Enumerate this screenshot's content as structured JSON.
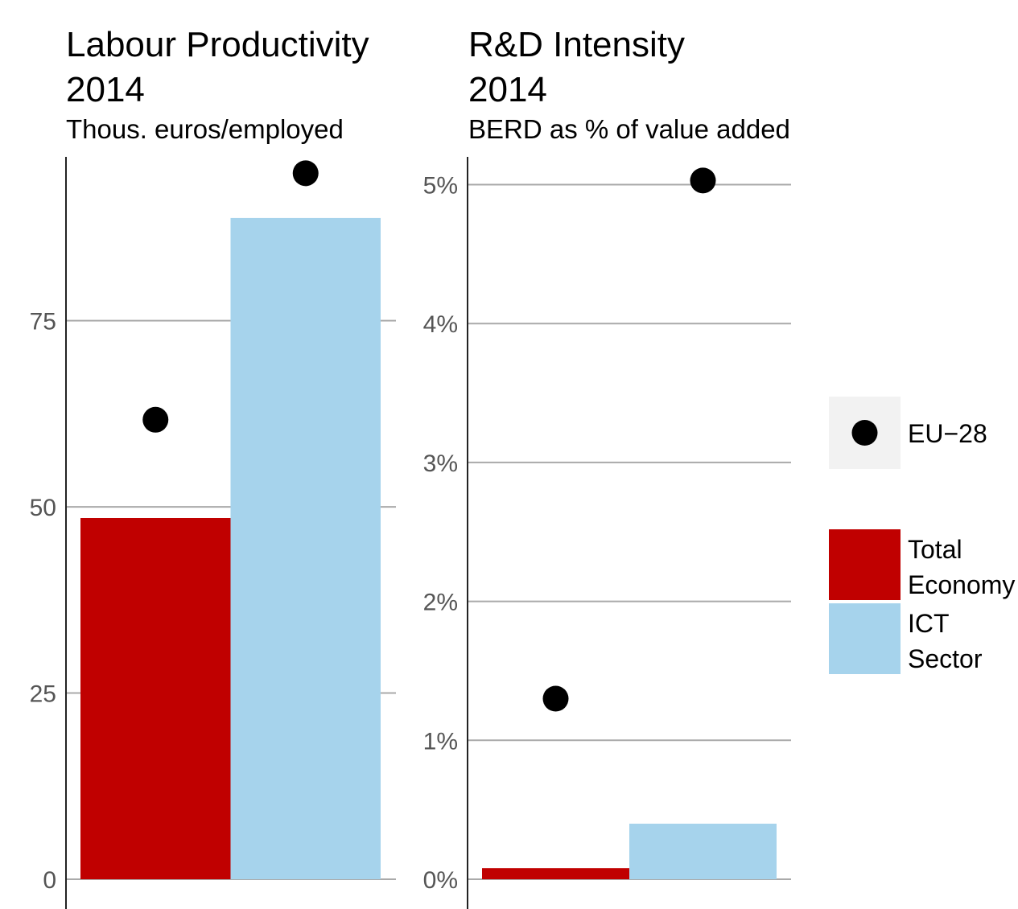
{
  "chart_data": [
    {
      "type": "bar",
      "title": "Labour Productivity 2014",
      "title_lines": [
        "Labour Productivity",
        "2014"
      ],
      "subtitle": "Thous. euros/employed",
      "categories": [
        "Total Economy",
        "ICT Sector"
      ],
      "series": [
        {
          "name": "Value",
          "values": [
            48.5,
            88.8
          ],
          "colors": [
            "#c00000",
            "#a6d3ec"
          ]
        },
        {
          "name": "EU−28",
          "values": [
            61.7,
            94.8
          ],
          "marker": "point",
          "color": "#000000"
        }
      ],
      "ylim": [
        0,
        97
      ],
      "yticks": [
        0,
        25,
        50,
        75
      ],
      "ytick_labels": [
        "0",
        "25",
        "50",
        "75"
      ],
      "grid": true
    },
    {
      "type": "bar",
      "title": "R&D Intensity 2014",
      "title_lines": [
        "R&D Intensity",
        "2014"
      ],
      "subtitle": "BERD as % of value added",
      "categories": [
        "Total Economy",
        "ICT Sector"
      ],
      "series": [
        {
          "name": "Value",
          "values": [
            0.08,
            0.4
          ],
          "colors": [
            "#c00000",
            "#a6d3ec"
          ]
        },
        {
          "name": "EU−28",
          "values": [
            1.3,
            5.03
          ],
          "marker": "point",
          "color": "#000000"
        }
      ],
      "ylim": [
        0,
        5.2
      ],
      "yticks": [
        0,
        1,
        2,
        3,
        4,
        5
      ],
      "ytick_labels": [
        "0%",
        "1%",
        "2%",
        "3%",
        "4%",
        "5%"
      ],
      "grid": true
    }
  ],
  "legend": {
    "position": "right",
    "point_entry": {
      "label": "EU−28",
      "color": "#000000"
    },
    "fill_entries": [
      {
        "label_lines": [
          "Total",
          "Economy"
        ],
        "color": "#c00000"
      },
      {
        "label_lines": [
          "ICT",
          "Sector"
        ],
        "color": "#a6d3ec"
      }
    ]
  }
}
